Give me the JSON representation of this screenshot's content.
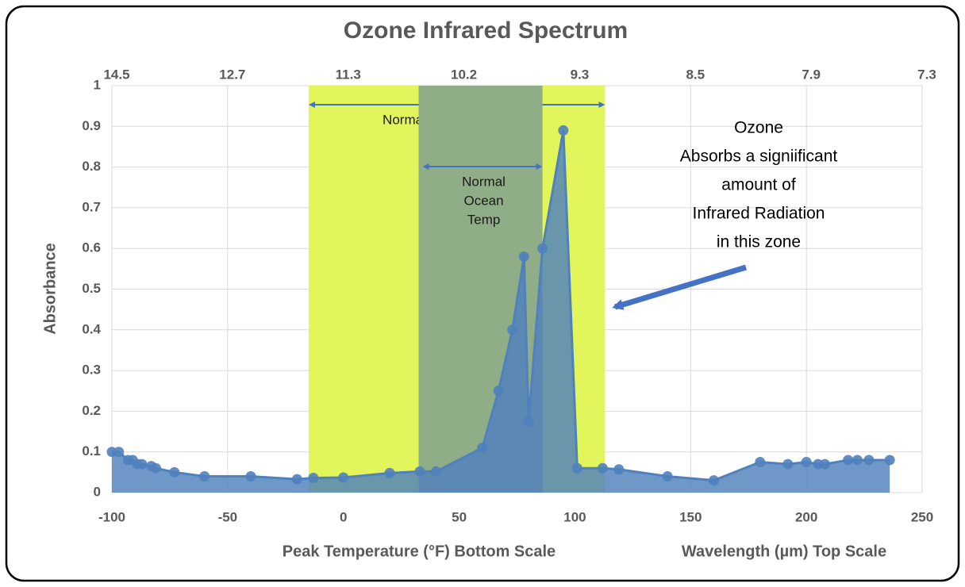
{
  "chart_data": {
    "type": "area",
    "title": "Ozone Infrared Spectrum",
    "y_label": "Absorbance",
    "x_label": "Peak Temperature  (°F) Bottom Scale",
    "x2_label": "Wavelength (µm) Top Scale",
    "x": [
      -100,
      -97,
      -93,
      -91,
      -89,
      -87,
      -83,
      -81,
      -73,
      -60,
      -40,
      -20,
      -13,
      0,
      20,
      33,
      40,
      60,
      67,
      73,
      78,
      80,
      86,
      95,
      101,
      112,
      119,
      140,
      160,
      180,
      192,
      200,
      205,
      208,
      218,
      222,
      227,
      236
    ],
    "series": [
      {
        "name": "Absorbance",
        "color": "#4f81bd",
        "values": [
          0.1,
          0.1,
          0.08,
          0.08,
          0.07,
          0.07,
          0.065,
          0.06,
          0.05,
          0.04,
          0.04,
          0.033,
          0.036,
          0.037,
          0.048,
          0.052,
          0.052,
          0.11,
          0.25,
          0.4,
          0.58,
          0.175,
          0.6,
          0.89,
          0.06,
          0.06,
          0.057,
          0.04,
          0.03,
          0.075,
          0.07,
          0.075,
          0.07,
          0.07,
          0.08,
          0.08,
          0.08,
          0.08
        ]
      }
    ],
    "xlim": [
      -100,
      250
    ],
    "xticks": [
      -100,
      -50,
      0,
      50,
      100,
      150,
      200,
      250
    ],
    "x2ticks": [
      {
        "value": -100,
        "label": "14.5"
      },
      {
        "value": -50,
        "label": "12.7"
      },
      {
        "value": 0,
        "label": "11.3"
      },
      {
        "value": 50,
        "label": "10.2"
      },
      {
        "value": 100,
        "label": "9.3"
      },
      {
        "value": 150,
        "label": "8.5"
      },
      {
        "value": 200,
        "label": "7.9"
      },
      {
        "value": 250,
        "label": "7.3"
      }
    ],
    "ylim": [
      0,
      1
    ],
    "yticks": [
      0,
      0.1,
      0.2,
      0.3,
      0.4,
      0.5,
      0.6,
      0.7,
      0.8,
      0.9,
      1
    ],
    "grid": true,
    "bands": [
      {
        "label": [
          "Normal Land Temperature"
        ],
        "x": [
          -15,
          113
        ],
        "color": "#e2f55a"
      },
      {
        "label": [
          "Normal",
          "Ocean",
          "Temp"
        ],
        "x": [
          32.5,
          86
        ],
        "color": "#8fae87"
      }
    ],
    "annotation": [
      "Ozone",
      "Absorbs a signiificant",
      "amount of",
      "Infrared Radiation",
      "in this zone"
    ]
  }
}
